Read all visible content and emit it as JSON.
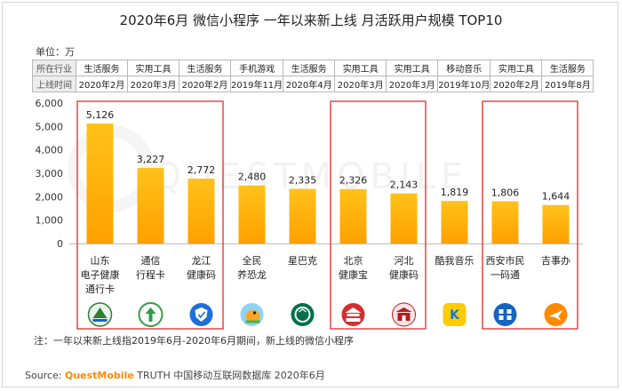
{
  "title": "2020年6月 微信小程序 一年以来新上线 月活跃用户规模 TOP10",
  "unit_label": "单位：万",
  "table": {
    "row_labels": [
      "所在行业",
      "上线时间"
    ],
    "industry": [
      "生活服务",
      "实用工具",
      "生活服务",
      "手机游戏",
      "生活服务",
      "实用工具",
      "实用工具",
      "移动音乐",
      "实用工具",
      "生活服务"
    ],
    "launch": [
      "2020年2月",
      "2020年3月",
      "2020年2月",
      "2019年11月",
      "2020年4月",
      "2020年3月",
      "2020年3月",
      "2019年10月",
      "2020年2月",
      "2019年8月"
    ]
  },
  "chart_data": {
    "type": "bar",
    "title": "2020年6月 微信小程序 一年以来新上线 月活跃用户规模 TOP10",
    "ylabel": "单位：万",
    "xlabel": "",
    "categories": [
      [
        "山东",
        "电子健康",
        "通行卡"
      ],
      [
        "通信",
        "行程卡"
      ],
      [
        "龙江",
        "健康码"
      ],
      [
        "全民",
        "养恐龙"
      ],
      [
        "星巴克"
      ],
      [
        "北京",
        "健康宝"
      ],
      [
        "河北",
        "健康码"
      ],
      [
        "酷我音乐"
      ],
      [
        "西安市民",
        "一码通"
      ],
      [
        "吉事办"
      ]
    ],
    "values": [
      5126,
      3227,
      2772,
      2480,
      2335,
      2326,
      2143,
      1819,
      1806,
      1644
    ],
    "value_labels": [
      "5,126",
      "3,227",
      "2,772",
      "2,480",
      "2,335",
      "2,326",
      "2,143",
      "1,819",
      "1,806",
      "1,644"
    ],
    "ylim": [
      0,
      6000
    ],
    "yticks": [
      0,
      1000,
      2000,
      3000,
      4000,
      5000,
      6000
    ],
    "ytick_labels": [
      "0",
      "1,000",
      "2,000",
      "3,000",
      "4,000",
      "5,000",
      "6,000"
    ],
    "bar_color": "#ffc21a",
    "bar_gradient_end": "#ffa000",
    "highlight_groups": [
      [
        0,
        2
      ],
      [
        5,
        6
      ],
      [
        8,
        9
      ]
    ],
    "highlight_color": "#e53935",
    "grid": false,
    "icons": [
      "health-card-icon",
      "arrow-circle-icon",
      "shield-icon",
      "dinosaur-icon",
      "starbucks-icon",
      "tiananmen-icon",
      "gate-icon",
      "kuwo-icon",
      "xian-code-icon",
      "jilin-plane-icon"
    ]
  },
  "note": "注：一年以来新上线指2019年6月-2020年6月期间，新上线的微信小程序",
  "source": {
    "prefix": "Source: ",
    "brand": "QuestMobile",
    "rest": " TRUTH 中国移动互联网数据库 2020年6月"
  },
  "watermark": "QUESTMOBILE"
}
